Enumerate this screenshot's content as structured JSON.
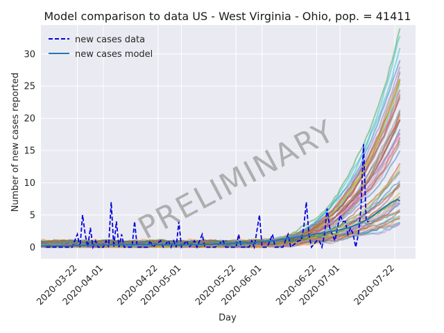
{
  "chart_data": {
    "type": "line",
    "title": "Model comparison to data US - West Virginia - Ohio, pop. = 41411",
    "xlabel": "Day",
    "ylabel": "Number of new cases reported",
    "x_range": [
      "2020-03-08",
      "2020-07-30"
    ],
    "ylim": [
      -1.8,
      34.5
    ],
    "grid": true,
    "background": "#eaeaf2",
    "legend_position": "top-left",
    "watermark": "PRELIMINARY",
    "x_tick_labels": [
      "2020-03-22",
      "2020-04-01",
      "2020-04-22",
      "2020-05-01",
      "2020-05-22",
      "2020-06-01",
      "2020-06-22",
      "2020-07-01",
      "2020-07-22"
    ],
    "y_tick_values": [
      0,
      5,
      10,
      15,
      20,
      25,
      30
    ],
    "y_tick_labels": [
      "0",
      "5",
      "10",
      "15",
      "20",
      "25",
      "30"
    ],
    "series": [
      {
        "name": "new cases data",
        "style": "dashed",
        "color": "#0000dd",
        "points": [
          [
            "2020-03-10",
            0
          ],
          [
            "2020-03-16",
            0
          ],
          [
            "2020-03-20",
            0
          ],
          [
            "2020-03-22",
            2
          ],
          [
            "2020-03-23",
            0
          ],
          [
            "2020-03-24",
            5
          ],
          [
            "2020-03-25",
            2
          ],
          [
            "2020-03-26",
            0
          ],
          [
            "2020-03-27",
            3
          ],
          [
            "2020-03-28",
            0
          ],
          [
            "2020-03-29",
            1
          ],
          [
            "2020-03-30",
            0
          ],
          [
            "2020-04-01",
            0
          ],
          [
            "2020-04-02",
            1
          ],
          [
            "2020-04-03",
            0
          ],
          [
            "2020-04-04",
            7
          ],
          [
            "2020-04-05",
            0
          ],
          [
            "2020-04-06",
            4
          ],
          [
            "2020-04-07",
            0
          ],
          [
            "2020-04-08",
            2
          ],
          [
            "2020-04-09",
            0
          ],
          [
            "2020-04-12",
            0
          ],
          [
            "2020-04-13",
            4
          ],
          [
            "2020-04-14",
            0
          ],
          [
            "2020-04-18",
            0
          ],
          [
            "2020-04-19",
            1
          ],
          [
            "2020-04-20",
            0
          ],
          [
            "2020-04-23",
            1
          ],
          [
            "2020-04-24",
            0
          ],
          [
            "2020-04-26",
            1
          ],
          [
            "2020-04-27",
            0
          ],
          [
            "2020-04-28",
            1
          ],
          [
            "2020-04-29",
            0
          ],
          [
            "2020-04-30",
            4
          ],
          [
            "2020-05-01",
            0
          ],
          [
            "2020-05-03",
            1
          ],
          [
            "2020-05-04",
            0
          ],
          [
            "2020-05-06",
            1
          ],
          [
            "2020-05-07",
            0
          ],
          [
            "2020-05-09",
            2
          ],
          [
            "2020-05-10",
            0
          ],
          [
            "2020-05-14",
            0
          ],
          [
            "2020-05-17",
            1
          ],
          [
            "2020-05-18",
            0
          ],
          [
            "2020-05-22",
            0
          ],
          [
            "2020-05-23",
            2
          ],
          [
            "2020-05-24",
            0
          ],
          [
            "2020-05-27",
            0
          ],
          [
            "2020-05-28",
            1
          ],
          [
            "2020-05-29",
            0
          ],
          [
            "2020-05-31",
            5
          ],
          [
            "2020-06-01",
            0
          ],
          [
            "2020-06-03",
            0
          ],
          [
            "2020-06-05",
            2
          ],
          [
            "2020-06-06",
            0
          ],
          [
            "2020-06-09",
            0
          ],
          [
            "2020-06-11",
            2
          ],
          [
            "2020-06-12",
            0
          ],
          [
            "2020-06-15",
            1
          ],
          [
            "2020-06-16",
            1
          ],
          [
            "2020-06-17",
            3
          ],
          [
            "2020-06-18",
            7
          ],
          [
            "2020-06-19",
            2
          ],
          [
            "2020-06-20",
            0
          ],
          [
            "2020-06-22",
            1
          ],
          [
            "2020-06-23",
            1
          ],
          [
            "2020-06-24",
            0
          ],
          [
            "2020-06-25",
            2
          ],
          [
            "2020-06-26",
            6
          ],
          [
            "2020-06-27",
            3
          ],
          [
            "2020-06-28",
            2
          ],
          [
            "2020-06-29",
            1
          ],
          [
            "2020-06-30",
            3
          ],
          [
            "2020-07-01",
            5
          ],
          [
            "2020-07-02",
            4
          ],
          [
            "2020-07-03",
            4
          ],
          [
            "2020-07-04",
            2
          ],
          [
            "2020-07-05",
            3
          ],
          [
            "2020-07-06",
            2
          ],
          [
            "2020-07-07",
            0
          ],
          [
            "2020-07-08",
            2
          ],
          [
            "2020-07-09",
            6
          ],
          [
            "2020-07-10",
            16
          ],
          [
            "2020-07-11",
            4
          ],
          [
            "2020-07-12",
            4
          ]
        ]
      },
      {
        "name": "new cases model",
        "style": "solid",
        "color": "#1f77b4",
        "points": [
          [
            "2020-03-08",
            0.2
          ],
          [
            "2020-03-18",
            0.2
          ],
          [
            "2020-03-28",
            0.3
          ],
          [
            "2020-04-08",
            0.4
          ],
          [
            "2020-04-18",
            0.4
          ],
          [
            "2020-04-28",
            0.4
          ],
          [
            "2020-05-08",
            0.4
          ],
          [
            "2020-05-18",
            0.5
          ],
          [
            "2020-05-28",
            0.7
          ],
          [
            "2020-06-05",
            1.0
          ],
          [
            "2020-06-12",
            1.4
          ],
          [
            "2020-06-18",
            1.8
          ],
          [
            "2020-06-24",
            2.2
          ],
          [
            "2020-06-30",
            2.6
          ],
          [
            "2020-07-04",
            3.0
          ],
          [
            "2020-07-08",
            3.6
          ],
          [
            "2020-07-12",
            4.4
          ],
          [
            "2020-07-15",
            5.3
          ],
          [
            "2020-07-18",
            6.2
          ],
          [
            "2020-07-21",
            7.0
          ],
          [
            "2020-07-23",
            7.4
          ],
          [
            "2020-07-24",
            7.2
          ]
        ]
      }
    ],
    "ensemble": {
      "count": 60,
      "peak_min": 3,
      "peak_max": 33,
      "palette": [
        "#1f77b4",
        "#ff7f0e",
        "#2ca02c",
        "#d62728",
        "#9467bd",
        "#8c564b",
        "#e377c2",
        "#7f7f7f",
        "#bcbd22",
        "#17becf"
      ]
    }
  }
}
